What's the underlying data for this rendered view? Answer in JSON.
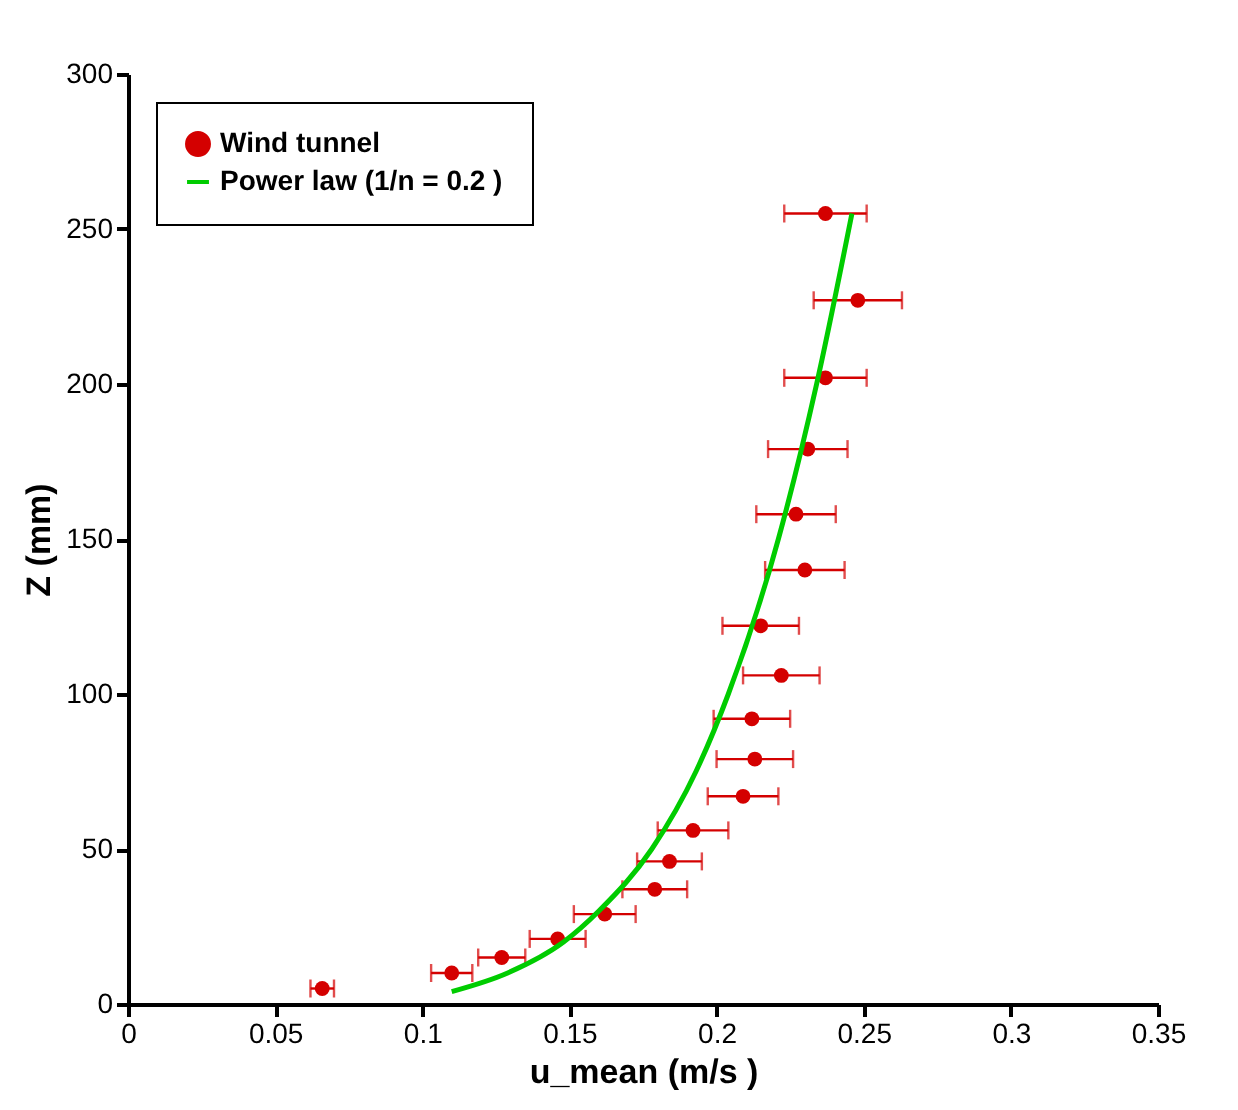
{
  "chart_data": {
    "type": "scatter",
    "xlabel": "u_mean (m/s )",
    "ylabel": "Z (mm)",
    "xlim": [
      0,
      0.35
    ],
    "xticks": [
      0,
      0.05,
      0.1,
      0.15,
      0.2,
      0.25,
      0.3,
      0.35
    ],
    "ylim": [
      0,
      300
    ],
    "yticks": [
      0,
      50,
      100,
      150,
      200,
      250,
      300
    ],
    "grid": false,
    "legend": "top left",
    "marker": "circle",
    "series": [
      {
        "name": "Wind tunnel",
        "color": "#d40000",
        "x": [
          0.066,
          0.11,
          0.127,
          0.146,
          0.162,
          0.179,
          0.184,
          0.192,
          0.209,
          0.213,
          0.212,
          0.222,
          0.215,
          0.23,
          0.227,
          0.231,
          0.237,
          0.248,
          0.237
        ],
        "values": [
          5,
          10,
          15,
          21,
          29,
          37,
          46,
          56,
          67,
          79,
          92,
          106,
          122,
          140,
          158,
          179,
          202,
          227,
          255
        ],
        "xerrors": [
          0.004,
          0.007,
          0.008,
          0.0095,
          0.0105,
          0.011,
          0.011,
          0.012,
          0.012,
          0.013,
          0.013,
          0.013,
          0.013,
          0.0135,
          0.0135,
          0.0135,
          0.014,
          0.015,
          0.014
        ]
      },
      {
        "name": "Power law (1/n = 0.2 )",
        "type": "line",
        "color": "#00cc00",
        "marker": "none",
        "line_style": "solid",
        "x": [
          0.11,
          0.129,
          0.148,
          0.16,
          0.178,
          0.193,
          0.204,
          0.221,
          0.234,
          0.246
        ],
        "values": [
          4,
          10,
          20,
          30,
          50,
          75,
          100,
          150,
          200,
          255
        ]
      }
    ]
  }
}
